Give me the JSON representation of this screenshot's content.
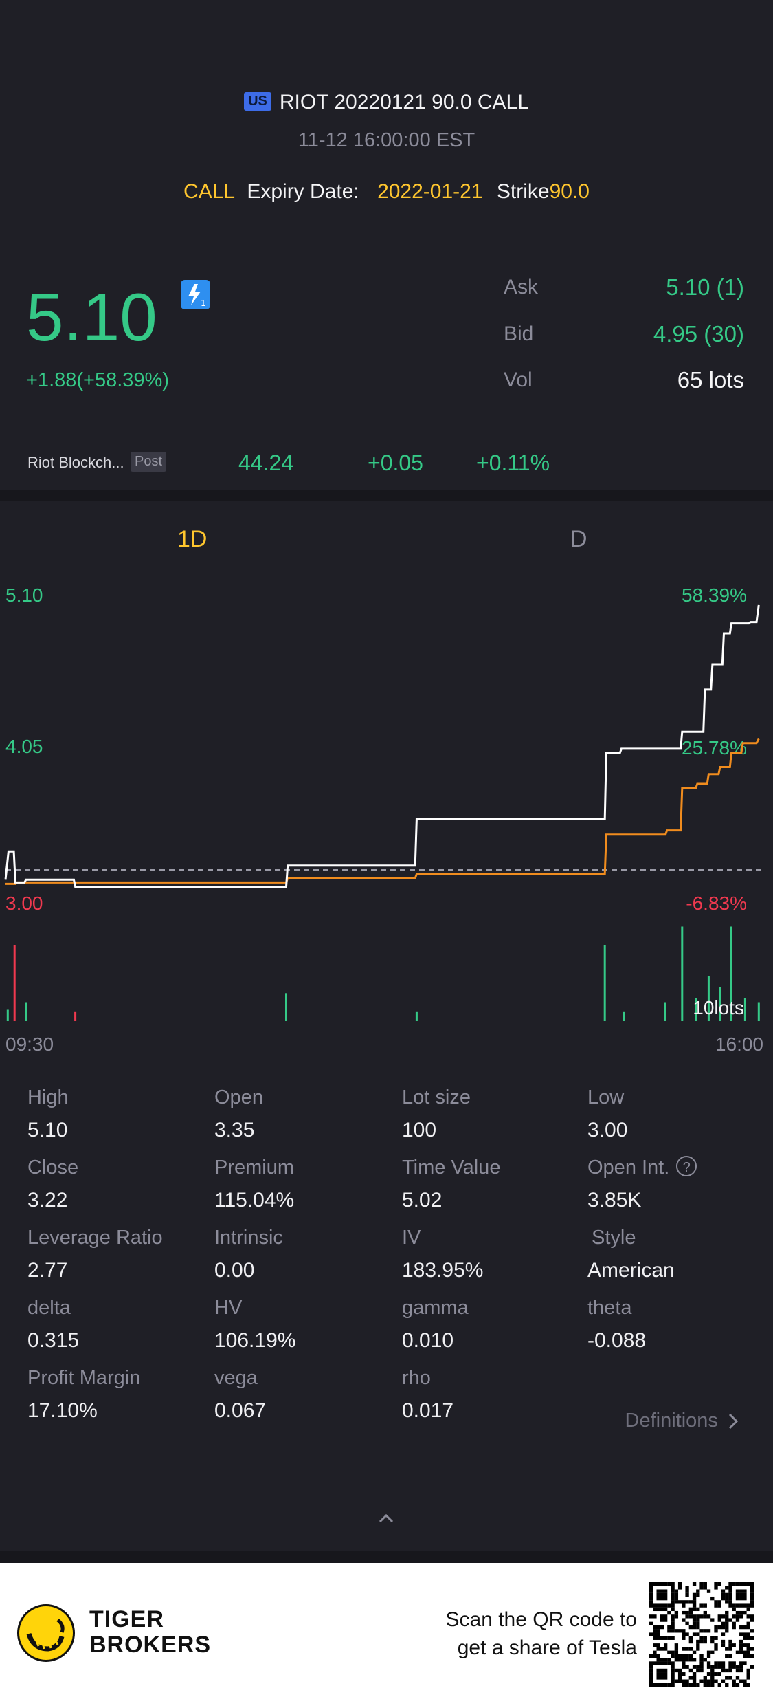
{
  "header": {
    "market_badge": "US",
    "title": "RIOT 20220121 90.0 CALL",
    "timestamp": "11-12 16:00:00 EST",
    "type": "CALL",
    "expiry_label": "Expiry Date:",
    "expiry_value": "2022-01-21",
    "strike_label": "Strike",
    "strike_value": "90.0"
  },
  "quote": {
    "price": "5.10",
    "change": "+1.88(+58.39%)",
    "ask_label": "Ask",
    "ask_value": "5.10 (1)",
    "bid_label": "Bid",
    "bid_value": "4.95 (30)",
    "vol_label": "Vol",
    "vol_value": "65 lots"
  },
  "underlying": {
    "name": "Riot Blockch...",
    "session": "Post",
    "price": "44.24",
    "change": "+0.05",
    "change_pct": "+0.11%"
  },
  "tabs": [
    {
      "label": "1D",
      "active": true
    },
    {
      "label": "D",
      "active": false
    }
  ],
  "chart_data": {
    "type": "line",
    "y_left_ticks": [
      "5.10",
      "4.05",
      "3.00"
    ],
    "y_right_ticks": [
      "58.39%",
      "25.78%",
      "-6.83%"
    ],
    "x_ticks": [
      "09:30",
      "16:00"
    ],
    "ylim": [
      3.0,
      5.1
    ],
    "reference_close": 3.22,
    "volume_label": "10lots",
    "series": [
      {
        "color": "#ffffff",
        "points": [
          [
            0,
            3.15
          ],
          [
            0.004,
            3.35
          ],
          [
            0.011,
            3.35
          ],
          [
            0.013,
            3.13
          ],
          [
            0.025,
            3.13
          ],
          [
            0.027,
            3.15
          ],
          [
            0.09,
            3.15
          ],
          [
            0.092,
            3.1
          ],
          [
            0.37,
            3.1
          ],
          [
            0.372,
            3.25
          ],
          [
            0.54,
            3.25
          ],
          [
            0.542,
            3.58
          ],
          [
            0.79,
            3.58
          ],
          [
            0.792,
            4.05
          ],
          [
            0.81,
            4.05
          ],
          [
            0.812,
            4.08
          ],
          [
            0.89,
            4.08
          ],
          [
            0.892,
            4.2
          ],
          [
            0.92,
            4.2
          ],
          [
            0.922,
            4.5
          ],
          [
            0.93,
            4.5
          ],
          [
            0.932,
            4.68
          ],
          [
            0.945,
            4.68
          ],
          [
            0.947,
            4.9
          ],
          [
            0.955,
            4.9
          ],
          [
            0.957,
            4.97
          ],
          [
            0.98,
            4.97
          ],
          [
            0.982,
            4.98
          ],
          [
            0.99,
            4.98
          ],
          [
            0.993,
            5.1
          ]
        ]
      },
      {
        "color": "#f08c1e",
        "points": [
          [
            0,
            3.12
          ],
          [
            0.013,
            3.12
          ],
          [
            0.015,
            3.13
          ],
          [
            0.37,
            3.13
          ],
          [
            0.372,
            3.16
          ],
          [
            0.54,
            3.16
          ],
          [
            0.542,
            3.19
          ],
          [
            0.79,
            3.19
          ],
          [
            0.792,
            3.47
          ],
          [
            0.87,
            3.47
          ],
          [
            0.872,
            3.5
          ],
          [
            0.89,
            3.5
          ],
          [
            0.892,
            3.8
          ],
          [
            0.91,
            3.8
          ],
          [
            0.912,
            3.83
          ],
          [
            0.925,
            3.83
          ],
          [
            0.927,
            3.9
          ],
          [
            0.94,
            3.9
          ],
          [
            0.942,
            3.95
          ],
          [
            0.955,
            3.95
          ],
          [
            0.957,
            4.05
          ],
          [
            0.97,
            4.05
          ],
          [
            0.972,
            4.12
          ],
          [
            0.99,
            4.12
          ],
          [
            0.993,
            4.15
          ]
        ]
      }
    ],
    "volume_bars": [
      {
        "x": 0.003,
        "v": 0.15,
        "color": "#35c987"
      },
      {
        "x": 0.012,
        "v": 1.0,
        "color": "#f0394f"
      },
      {
        "x": 0.027,
        "v": 0.25,
        "color": "#35c987"
      },
      {
        "x": 0.092,
        "v": 0.12,
        "color": "#f0394f"
      },
      {
        "x": 0.37,
        "v": 0.37,
        "color": "#35c987"
      },
      {
        "x": 0.542,
        "v": 0.12,
        "color": "#35c987"
      },
      {
        "x": 0.79,
        "v": 1.0,
        "color": "#35c987"
      },
      {
        "x": 0.815,
        "v": 0.12,
        "color": "#35c987"
      },
      {
        "x": 0.87,
        "v": 0.25,
        "color": "#35c987"
      },
      {
        "x": 0.892,
        "v": 1.25,
        "color": "#35c987"
      },
      {
        "x": 0.91,
        "v": 0.3,
        "color": "#35c987"
      },
      {
        "x": 0.927,
        "v": 0.6,
        "color": "#35c987"
      },
      {
        "x": 0.942,
        "v": 0.45,
        "color": "#35c987"
      },
      {
        "x": 0.957,
        "v": 1.25,
        "color": "#35c987"
      },
      {
        "x": 0.975,
        "v": 0.3,
        "color": "#35c987"
      },
      {
        "x": 0.993,
        "v": 0.25,
        "color": "#35c987"
      }
    ]
  },
  "stats": [
    {
      "label": "High",
      "value": "5.10"
    },
    {
      "label": "Open",
      "value": "3.35"
    },
    {
      "label": "Lot size",
      "value": "100"
    },
    {
      "label": "Low",
      "value": "3.00"
    },
    {
      "label": "Close",
      "value": "3.22"
    },
    {
      "label": "Premium",
      "value": "115.04%"
    },
    {
      "label": "Time Value",
      "value": "5.02"
    },
    {
      "label": "Open Int.",
      "value": "3.85K"
    },
    {
      "label": "Leverage Ratio",
      "value": "2.77"
    },
    {
      "label": "Intrinsic",
      "value": "0.00"
    },
    {
      "label": "IV",
      "value": "183.95%"
    },
    {
      "label": "Style",
      "value": "American"
    },
    {
      "label": "delta",
      "value": "0.315"
    },
    {
      "label": "HV",
      "value": "106.19%"
    },
    {
      "label": "gamma",
      "value": "0.010"
    },
    {
      "label": "theta",
      "value": "-0.088"
    },
    {
      "label": "Profit Margin",
      "value": "17.10%"
    },
    {
      "label": "vega",
      "value": "0.067"
    },
    {
      "label": "rho",
      "value": "0.017"
    }
  ],
  "help_icon": "?",
  "definitions_link": "Definitions",
  "footer": {
    "brand_line1": "TIGER",
    "brand_line2": "BROKERS",
    "scan_line1": "Scan the QR code to",
    "scan_line2": "get a share of Tesla"
  },
  "colors": {
    "background": "#1f1f26",
    "green": "#35c987",
    "red": "#f0394f",
    "yellow": "#ffc62e",
    "orange": "#f08c1e"
  }
}
